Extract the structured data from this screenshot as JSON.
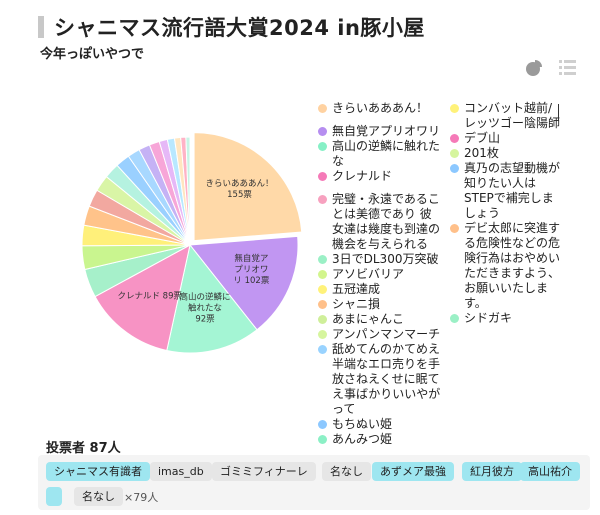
{
  "header": {
    "title": "シャニマス流行語大賞2024 in豚小屋",
    "subtitle": "今年っぽいやつで"
  },
  "view_icons": [
    "pie-view-icon",
    "list-view-icon"
  ],
  "chart_data": {
    "type": "pie",
    "total_votes_unit": "票",
    "slices": [
      {
        "label": "きらいあああん！",
        "value": 155,
        "color": "#ffd9a8",
        "callout": "きらいあああん！\n155票",
        "exploded": true
      },
      {
        "label": "無自覚アプリオワリ",
        "value": 102,
        "color": "#c196f2",
        "callout": "無自覚ア\nプリオワ\nリ 102票"
      },
      {
        "label": "高山の逆鱗に触れたな",
        "value": 92,
        "color": "#a4f5d4",
        "callout": "高山の逆鱗に\n触れたな\n92票"
      },
      {
        "label": "クレナルド",
        "value": 89,
        "color": "#f793c4",
        "callout": "クレナルド 89票"
      },
      {
        "label": "完璧・永遠であることは美德であり 彼女達は幾度も到達の機会を与えられる",
        "value": 28,
        "color": "#a6f0ca"
      },
      {
        "label": "3日でDL300万突破",
        "value": 23,
        "color": "#c9f58f"
      },
      {
        "label": "アソビバリア",
        "value": 20,
        "color": "#fff07a"
      },
      {
        "label": "五冠達成",
        "value": 19,
        "color": "#ffc38a"
      },
      {
        "label": "シャニ損",
        "value": 17,
        "color": "#f2a8a0"
      },
      {
        "label": "あまにゃんこ",
        "value": 16,
        "color": "#d9f5a6"
      },
      {
        "label": "アンパンマンマーチ",
        "value": 15,
        "color": "#b5f2e0"
      },
      {
        "label": "舐めてんのかてめえ半端なエロ売りを手放さねえくせに眠てえ事ばかりいいやがって",
        "value": 14,
        "color": "#9ad0ff"
      },
      {
        "label": "もちぬい姫",
        "value": 12,
        "color": "#a8d8ff"
      },
      {
        "label": "あんみつ姫",
        "value": 11,
        "color": "#c5b2f5"
      },
      {
        "label": "コンバット越前/レッツゴー陰陽師",
        "value": 10,
        "color": "#f7a6d8"
      },
      {
        "label": "デブ山",
        "value": 8,
        "color": "#e6b8f7"
      },
      {
        "label": "201枚",
        "value": 7,
        "color": "#b8e8ff"
      },
      {
        "label": "真乃の志望動機が知りたい人はSTEPで補完しましょう",
        "value": 6,
        "color": "#ffe6c0"
      },
      {
        "label": "デビ太郎に突進する危険性などの危険行為はおやめいただきますよう、お願いいたします。",
        "value": 5,
        "color": "#ffb3c6"
      },
      {
        "label": "シドガキ",
        "value": 4,
        "color": "#c8f5e6"
      }
    ]
  },
  "legend": {
    "col1": [
      {
        "label": "きらいあああん！",
        "color": "#ffd2a1"
      },
      {
        "gap": true
      },
      {
        "label": "無自覚アプリオワリ",
        "color": "#b68ef0"
      },
      {
        "label": "高山の逆鱗に触れたな",
        "color": "#86f0c6"
      },
      {
        "label": "クレナルド",
        "color": "#f57ab8"
      },
      {
        "gap": true
      },
      {
        "label": "完璧・永遠であることは美德であり 彼女達は幾度も到達の機会を与えられる",
        "color": "#f7a1bf"
      },
      {
        "label": "3日でDL300万突破",
        "color": "#9bf0c6"
      },
      {
        "label": "アソビバリア",
        "color": "#d2f58d"
      },
      {
        "label": "五冠達成",
        "color": "#fff27a"
      },
      {
        "label": "シャニ損",
        "color": "#ffc08a"
      },
      {
        "label": "あまにゃんこ",
        "color": "#cfef9a"
      },
      {
        "label": "アンパンマンマーチ",
        "color": "#d6f59e"
      },
      {
        "label": "舐めてんのかてめえ半端なエロ売りを手放さねえくせに眠てえ事ばかりいいやがって",
        "color": "#99d3ff"
      },
      {
        "label": "もちぬい姫",
        "color": "#8cc8ff"
      },
      {
        "label": "あんみつ姫",
        "color": "#8cf0c6"
      }
    ],
    "col2": [
      {
        "label": "コンバット越前/レッツゴー陰陽師",
        "color": "#fff27a"
      },
      {
        "label": "デブ山",
        "color": "#f57ab8"
      },
      {
        "label": "201枚",
        "color": "#d6f59e"
      },
      {
        "label": "真乃の志望動機が知りたい人はSTEPで補完しましょう",
        "color": "#8cc8ff"
      },
      {
        "label": "デビ太郎に突進する危険性などの危険行為はおやめいただきますよう、お願いいたします。",
        "color": "#ffc08a"
      },
      {
        "label": "シドガキ",
        "color": "#9bf0c6"
      }
    ]
  },
  "voters": {
    "label": "投票者 87人",
    "chips": [
      {
        "text": "シャニマス有識者",
        "style": "hl"
      },
      {
        "text": "imas_db",
        "style": "pl"
      },
      {
        "text": "ゴミミフィナーレ",
        "style": "pl"
      },
      {
        "text": "名なし",
        "style": "pl"
      },
      {
        "text": "あずメア最強",
        "style": "hl"
      },
      {
        "text": "紅月彼方",
        "style": "hl"
      },
      {
        "text": "高山祐介",
        "style": "hl"
      },
      {
        "text": "",
        "style": "hl"
      },
      {
        "text": "名なし",
        "style": "pl"
      }
    ],
    "more": "×79人"
  }
}
